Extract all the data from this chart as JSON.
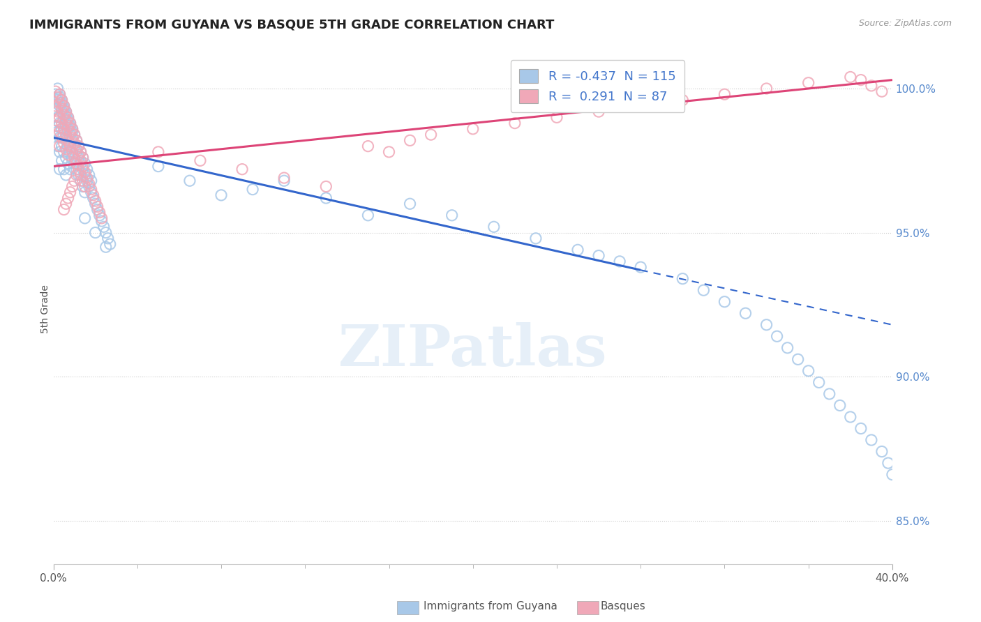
{
  "title": "IMMIGRANTS FROM GUYANA VS BASQUE 5TH GRADE CORRELATION CHART",
  "source_text": "Source: ZipAtlas.com",
  "ylabel": "5th Grade",
  "xlim": [
    0.0,
    0.4
  ],
  "ylim": [
    0.835,
    1.012
  ],
  "xtick_labels": [
    "0.0%",
    "40.0%"
  ],
  "xtick_minor_count": 9,
  "ytick_vals": [
    0.85,
    0.9,
    0.95,
    1.0
  ],
  "ytick_labels": [
    "85.0%",
    "90.0%",
    "95.0%",
    "100.0%"
  ],
  "blue_R": -0.437,
  "blue_N": 115,
  "pink_R": 0.291,
  "pink_N": 87,
  "legend_label_blue": "Immigrants from Guyana",
  "legend_label_pink": "Basques",
  "blue_color": "#a8c8e8",
  "pink_color": "#f0a8b8",
  "trend_blue_color": "#3366cc",
  "trend_pink_color": "#dd4477",
  "background_color": "#ffffff",
  "watermark_text": "ZIPatlas",
  "title_fontsize": 13,
  "blue_trend": {
    "x_start": 0.0,
    "x_end": 0.28,
    "x_dash_end": 0.4,
    "y_start": 0.983,
    "y_end": 0.937,
    "y_dash_end": 0.918
  },
  "pink_trend": {
    "x_start": 0.0,
    "x_end": 0.4,
    "y_start": 0.973,
    "y_end": 1.003
  },
  "blue_scatter_x": [
    0.001,
    0.001,
    0.001,
    0.002,
    0.002,
    0.002,
    0.002,
    0.003,
    0.003,
    0.003,
    0.003,
    0.003,
    0.004,
    0.004,
    0.004,
    0.004,
    0.005,
    0.005,
    0.005,
    0.005,
    0.006,
    0.006,
    0.006,
    0.006,
    0.007,
    0.007,
    0.007,
    0.008,
    0.008,
    0.008,
    0.009,
    0.009,
    0.01,
    0.01,
    0.011,
    0.011,
    0.012,
    0.012,
    0.013,
    0.013,
    0.014,
    0.014,
    0.015,
    0.015,
    0.016,
    0.017,
    0.018,
    0.019,
    0.02,
    0.021,
    0.022,
    0.023,
    0.024,
    0.025,
    0.026,
    0.027,
    0.002,
    0.003,
    0.004,
    0.005,
    0.006,
    0.007,
    0.008,
    0.009,
    0.01,
    0.011,
    0.012,
    0.013,
    0.014,
    0.015,
    0.016,
    0.017,
    0.018,
    0.003,
    0.004,
    0.005,
    0.006,
    0.007,
    0.008,
    0.009,
    0.05,
    0.065,
    0.08,
    0.095,
    0.11,
    0.13,
    0.15,
    0.17,
    0.19,
    0.21,
    0.23,
    0.25,
    0.26,
    0.27,
    0.28,
    0.3,
    0.31,
    0.32,
    0.33,
    0.34,
    0.345,
    0.35,
    0.355,
    0.36,
    0.365,
    0.37,
    0.375,
    0.38,
    0.385,
    0.39,
    0.395,
    0.398,
    0.4,
    0.015,
    0.02,
    0.025
  ],
  "blue_scatter_y": [
    0.998,
    0.993,
    0.987,
    0.996,
    0.99,
    0.985,
    0.98,
    0.994,
    0.988,
    0.983,
    0.978,
    0.972,
    0.992,
    0.986,
    0.98,
    0.975,
    0.99,
    0.984,
    0.978,
    0.972,
    0.988,
    0.982,
    0.976,
    0.97,
    0.986,
    0.98,
    0.974,
    0.984,
    0.978,
    0.972,
    0.982,
    0.976,
    0.98,
    0.974,
    0.978,
    0.972,
    0.976,
    0.97,
    0.974,
    0.968,
    0.972,
    0.966,
    0.97,
    0.964,
    0.968,
    0.966,
    0.964,
    0.962,
    0.96,
    0.958,
    0.956,
    0.954,
    0.952,
    0.95,
    0.948,
    0.946,
    1.0,
    0.998,
    0.996,
    0.994,
    0.992,
    0.99,
    0.988,
    0.986,
    0.984,
    0.982,
    0.98,
    0.978,
    0.976,
    0.974,
    0.972,
    0.97,
    0.968,
    0.997,
    0.995,
    0.993,
    0.991,
    0.989,
    0.987,
    0.985,
    0.973,
    0.968,
    0.963,
    0.965,
    0.968,
    0.962,
    0.956,
    0.96,
    0.956,
    0.952,
    0.948,
    0.944,
    0.942,
    0.94,
    0.938,
    0.934,
    0.93,
    0.926,
    0.922,
    0.918,
    0.914,
    0.91,
    0.906,
    0.902,
    0.898,
    0.894,
    0.89,
    0.886,
    0.882,
    0.878,
    0.874,
    0.87,
    0.866,
    0.955,
    0.95,
    0.945
  ],
  "pink_scatter_x": [
    0.001,
    0.001,
    0.001,
    0.002,
    0.002,
    0.002,
    0.003,
    0.003,
    0.003,
    0.003,
    0.004,
    0.004,
    0.004,
    0.005,
    0.005,
    0.005,
    0.006,
    0.006,
    0.006,
    0.007,
    0.007,
    0.007,
    0.008,
    0.008,
    0.009,
    0.009,
    0.01,
    0.01,
    0.011,
    0.011,
    0.012,
    0.012,
    0.013,
    0.013,
    0.014,
    0.014,
    0.015,
    0.015,
    0.016,
    0.017,
    0.018,
    0.019,
    0.02,
    0.021,
    0.022,
    0.023,
    0.003,
    0.004,
    0.005,
    0.006,
    0.007,
    0.008,
    0.009,
    0.01,
    0.011,
    0.012,
    0.013,
    0.014,
    0.05,
    0.07,
    0.09,
    0.11,
    0.13,
    0.15,
    0.16,
    0.17,
    0.18,
    0.2,
    0.22,
    0.24,
    0.26,
    0.28,
    0.3,
    0.32,
    0.34,
    0.36,
    0.38,
    0.385,
    0.39,
    0.395,
    0.005,
    0.006,
    0.007,
    0.008,
    0.009,
    0.01,
    0.011
  ],
  "pink_scatter_y": [
    0.999,
    0.994,
    0.989,
    0.997,
    0.992,
    0.987,
    0.995,
    0.99,
    0.985,
    0.98,
    0.993,
    0.988,
    0.983,
    0.991,
    0.986,
    0.981,
    0.989,
    0.984,
    0.979,
    0.987,
    0.982,
    0.977,
    0.985,
    0.98,
    0.983,
    0.978,
    0.981,
    0.976,
    0.979,
    0.974,
    0.977,
    0.972,
    0.975,
    0.97,
    0.973,
    0.968,
    0.971,
    0.966,
    0.969,
    0.967,
    0.965,
    0.963,
    0.961,
    0.959,
    0.957,
    0.955,
    0.998,
    0.996,
    0.994,
    0.992,
    0.99,
    0.988,
    0.986,
    0.984,
    0.982,
    0.98,
    0.978,
    0.976,
    0.978,
    0.975,
    0.972,
    0.969,
    0.966,
    0.98,
    0.978,
    0.982,
    0.984,
    0.986,
    0.988,
    0.99,
    0.992,
    0.994,
    0.996,
    0.998,
    1.0,
    1.002,
    1.004,
    1.003,
    1.001,
    0.999,
    0.958,
    0.96,
    0.962,
    0.964,
    0.966,
    0.968,
    0.97
  ]
}
